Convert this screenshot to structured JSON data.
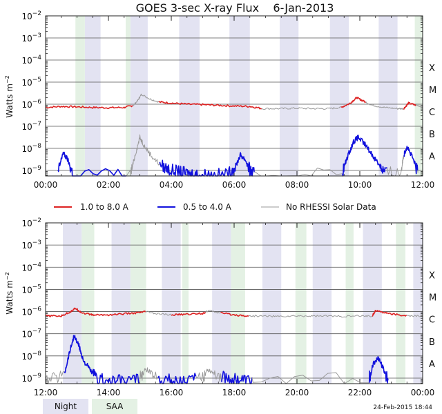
{
  "title": "GOES 3-sec X-ray Flux    6-Jan-2013",
  "timestamp": "24-Feb-2015 18:44",
  "ylabel_base": "Watts m",
  "ylabel_exp": "−2",
  "colors": {
    "night_band": "#e3e3f2",
    "saa_band": "#e4f1e4",
    "long_channel": "#dd2222",
    "short_channel": "#1111dd",
    "no_rhessi": "#999999",
    "gridline": "#555555"
  },
  "legend": {
    "long": "1.0 to 8.0 A",
    "short": "0.5 to 4.0 A",
    "gray": "No RHESSI Solar Data",
    "night": "Night",
    "saa": "SAA"
  },
  "chart_data": [
    {
      "type": "line",
      "panel": "top",
      "x_unit": "hour of day (UT)",
      "xlim": [
        0,
        12
      ],
      "x_ticks": [
        "00:00",
        "02:00",
        "04:00",
        "06:00",
        "08:00",
        "10:00",
        "12:00"
      ],
      "ylim_log10": [
        -9.25,
        -2
      ],
      "y_ticks": [
        {
          "base": "10",
          "exp": "−2",
          "v": -2
        },
        {
          "base": "10",
          "exp": "−3",
          "v": -3
        },
        {
          "base": "10",
          "exp": "−4",
          "v": -4
        },
        {
          "base": "10",
          "exp": "−5",
          "v": -5
        },
        {
          "base": "10",
          "exp": "−6",
          "v": -6
        },
        {
          "base": "10",
          "exp": "−7",
          "v": -7
        },
        {
          "base": "10",
          "exp": "−8",
          "v": -8
        },
        {
          "base": "10",
          "exp": "−9",
          "v": -9
        }
      ],
      "flare_classes": [
        {
          "label": "X",
          "v": -4
        },
        {
          "label": "M",
          "v": -5
        },
        {
          "label": "C",
          "v": -6
        },
        {
          "label": "B",
          "v": -7
        },
        {
          "label": "A",
          "v": -8
        }
      ],
      "night_bands": [
        [
          1.25,
          1.75
        ],
        [
          2.7,
          3.25
        ],
        [
          4.25,
          4.9
        ],
        [
          5.85,
          6.5
        ],
        [
          7.45,
          8.05
        ],
        [
          9.05,
          9.65
        ],
        [
          10.6,
          11.2
        ]
      ],
      "saa_bands": [
        [
          0.95,
          1.25
        ],
        [
          2.55,
          2.7
        ],
        [
          11.75,
          12.0
        ]
      ],
      "series": [
        {
          "name": "1.0 to 8.0 A",
          "color_key": "long_channel",
          "x": [
            0,
            0.5,
            1,
            1.5,
            2,
            2.5,
            2.8,
            2.95,
            3.05,
            3.3,
            3.6,
            4,
            4.5,
            5,
            5.5,
            6,
            6.5,
            6.9,
            7.5,
            8,
            8.5,
            9,
            9.4,
            9.7,
            9.9,
            10.1,
            10.4,
            10.8,
            11.2,
            11.4,
            11.55,
            11.8,
            12
          ],
          "y": [
            -6.15,
            -6.1,
            -6.12,
            -6.15,
            -6.16,
            -6.15,
            -6.05,
            -5.8,
            -5.55,
            -5.75,
            -5.9,
            -5.95,
            -6,
            -6.02,
            -6.05,
            -6.08,
            -6.1,
            -6.2,
            -6.2,
            -6.18,
            -6.2,
            -6.2,
            -6.15,
            -5.95,
            -5.7,
            -5.85,
            -6.05,
            -6.15,
            -6.2,
            -6.2,
            -5.95,
            -6.05,
            -6.1
          ],
          "gray_ranges": [
            [
              2.8,
              3.6
            ],
            [
              6.9,
              9.4
            ],
            [
              10.2,
              11.4
            ],
            [
              11.8,
              12
            ]
          ]
        },
        {
          "name": "0.5 to 4.0 A",
          "color_key": "short_channel",
          "x": [
            0.4,
            0.55,
            0.7,
            0.85,
            2.7,
            2.85,
            3.0,
            3.15,
            3.4,
            3.7,
            4.0,
            4.3,
            4.6,
            4.9,
            5.3,
            5.8,
            6.05,
            6.2,
            6.35,
            6.5,
            6.65,
            9.45,
            9.6,
            9.8,
            9.95,
            10.15,
            10.4,
            10.65,
            10.8,
            11.3,
            11.4,
            11.5,
            11.7,
            11.85
          ],
          "y": [
            -9.1,
            -8.2,
            -8.5,
            -9.1,
            -9.2,
            -8.3,
            -7.5,
            -7.9,
            -8.4,
            -8.8,
            -9.0,
            -9.1,
            -9.15,
            -9.2,
            -9.2,
            -9.2,
            -8.8,
            -8.3,
            -8.5,
            -9.0,
            -9.2,
            -9.1,
            -8.4,
            -7.7,
            -7.5,
            -7.8,
            -8.3,
            -8.8,
            -9.1,
            -9.1,
            -8.3,
            -7.9,
            -8.5,
            -9.1
          ],
          "gray_ranges": [
            [
              2.7,
              3.65
            ],
            [
              6.7,
              9.45
            ],
            [
              10.9,
              11.4
            ],
            [
              11.85,
              12
            ]
          ]
        }
      ]
    },
    {
      "type": "line",
      "panel": "bottom",
      "x_unit": "hour of day (UT)",
      "xlim": [
        12,
        24
      ],
      "x_ticks": [
        "12:00",
        "14:00",
        "16:00",
        "18:00",
        "20:00",
        "22:00",
        "00:00"
      ],
      "ylim_log10": [
        -9.25,
        -2
      ],
      "y_ticks": [
        {
          "base": "10",
          "exp": "−2",
          "v": -2
        },
        {
          "base": "10",
          "exp": "−3",
          "v": -3
        },
        {
          "base": "10",
          "exp": "−4",
          "v": -4
        },
        {
          "base": "10",
          "exp": "−5",
          "v": -5
        },
        {
          "base": "10",
          "exp": "−6",
          "v": -6
        },
        {
          "base": "10",
          "exp": "−7",
          "v": -7
        },
        {
          "base": "10",
          "exp": "−8",
          "v": -8
        },
        {
          "base": "10",
          "exp": "−9",
          "v": -9
        }
      ],
      "flare_classes": [
        {
          "label": "X",
          "v": -4
        },
        {
          "label": "M",
          "v": -5
        },
        {
          "label": "C",
          "v": -6
        },
        {
          "label": "B",
          "v": -7
        },
        {
          "label": "A",
          "v": -8
        }
      ],
      "night_bands": [
        [
          12.55,
          13.15
        ],
        [
          14.1,
          14.7
        ],
        [
          15.7,
          16.3
        ],
        [
          17.3,
          17.9
        ],
        [
          18.9,
          19.5
        ],
        [
          20.5,
          21.1
        ],
        [
          22.1,
          22.7
        ],
        [
          23.7,
          24.0
        ]
      ],
      "saa_bands": [
        [
          13.15,
          13.55
        ],
        [
          14.7,
          15.2
        ],
        [
          16.35,
          16.55
        ],
        [
          17.9,
          18.35
        ],
        [
          19.95,
          20.3
        ],
        [
          21.55,
          21.8
        ],
        [
          23.15,
          23.45
        ]
      ],
      "series": [
        {
          "name": "1.0 to 8.0 A",
          "color_key": "long_channel",
          "x": [
            12,
            12.5,
            12.8,
            12.95,
            13.15,
            13.5,
            14,
            14.5,
            15,
            15.2,
            15.5,
            16,
            16.5,
            17,
            17.2,
            17.5,
            18,
            18.5,
            19,
            19.5,
            20,
            20.5,
            21,
            21.5,
            22,
            22.4,
            22.5,
            22.8,
            23.2,
            23.6,
            24
          ],
          "y": [
            -6.2,
            -6.2,
            -6.0,
            -5.85,
            -6.05,
            -6.15,
            -6.15,
            -6.1,
            -6.05,
            -6.0,
            -6.1,
            -6.15,
            -6.12,
            -6.08,
            -5.95,
            -6.05,
            -6.15,
            -6.2,
            -6.2,
            -6.22,
            -6.2,
            -6.2,
            -6.2,
            -6.22,
            -6.2,
            -6.2,
            -5.95,
            -6.05,
            -6.15,
            -6.2,
            -6.2
          ],
          "gray_ranges": [
            [
              15.2,
              16.0
            ],
            [
              17.1,
              17.6
            ],
            [
              18.5,
              22.4
            ],
            [
              23.5,
              24
            ]
          ]
        },
        {
          "name": "0.5 to 4.0 A",
          "color_key": "short_channel",
          "x": [
            12,
            12.6,
            12.75,
            12.9,
            13.05,
            13.2,
            13.4,
            13.6,
            14.0,
            14.5,
            15.0,
            15.2,
            15.5,
            16.0,
            16.5,
            17.0,
            17.15,
            17.4,
            17.8,
            18.2,
            18.6,
            22.3,
            22.45,
            22.6,
            22.75,
            22.9
          ],
          "y": [
            -9.15,
            -8.8,
            -7.9,
            -7.1,
            -7.5,
            -8.2,
            -8.6,
            -9.0,
            -9.15,
            -9.15,
            -9.0,
            -8.6,
            -8.9,
            -9.1,
            -9.15,
            -9.0,
            -8.6,
            -8.8,
            -9.0,
            -9.1,
            -9.15,
            -9.0,
            -8.3,
            -8.1,
            -8.6,
            -9.1
          ],
          "gray_ranges": [
            [
              12,
              12.6
            ],
            [
              15.0,
              15.6
            ],
            [
              16.8,
              17.6
            ],
            [
              18.6,
              22.3
            ],
            [
              23.2,
              24
            ]
          ]
        }
      ]
    }
  ]
}
